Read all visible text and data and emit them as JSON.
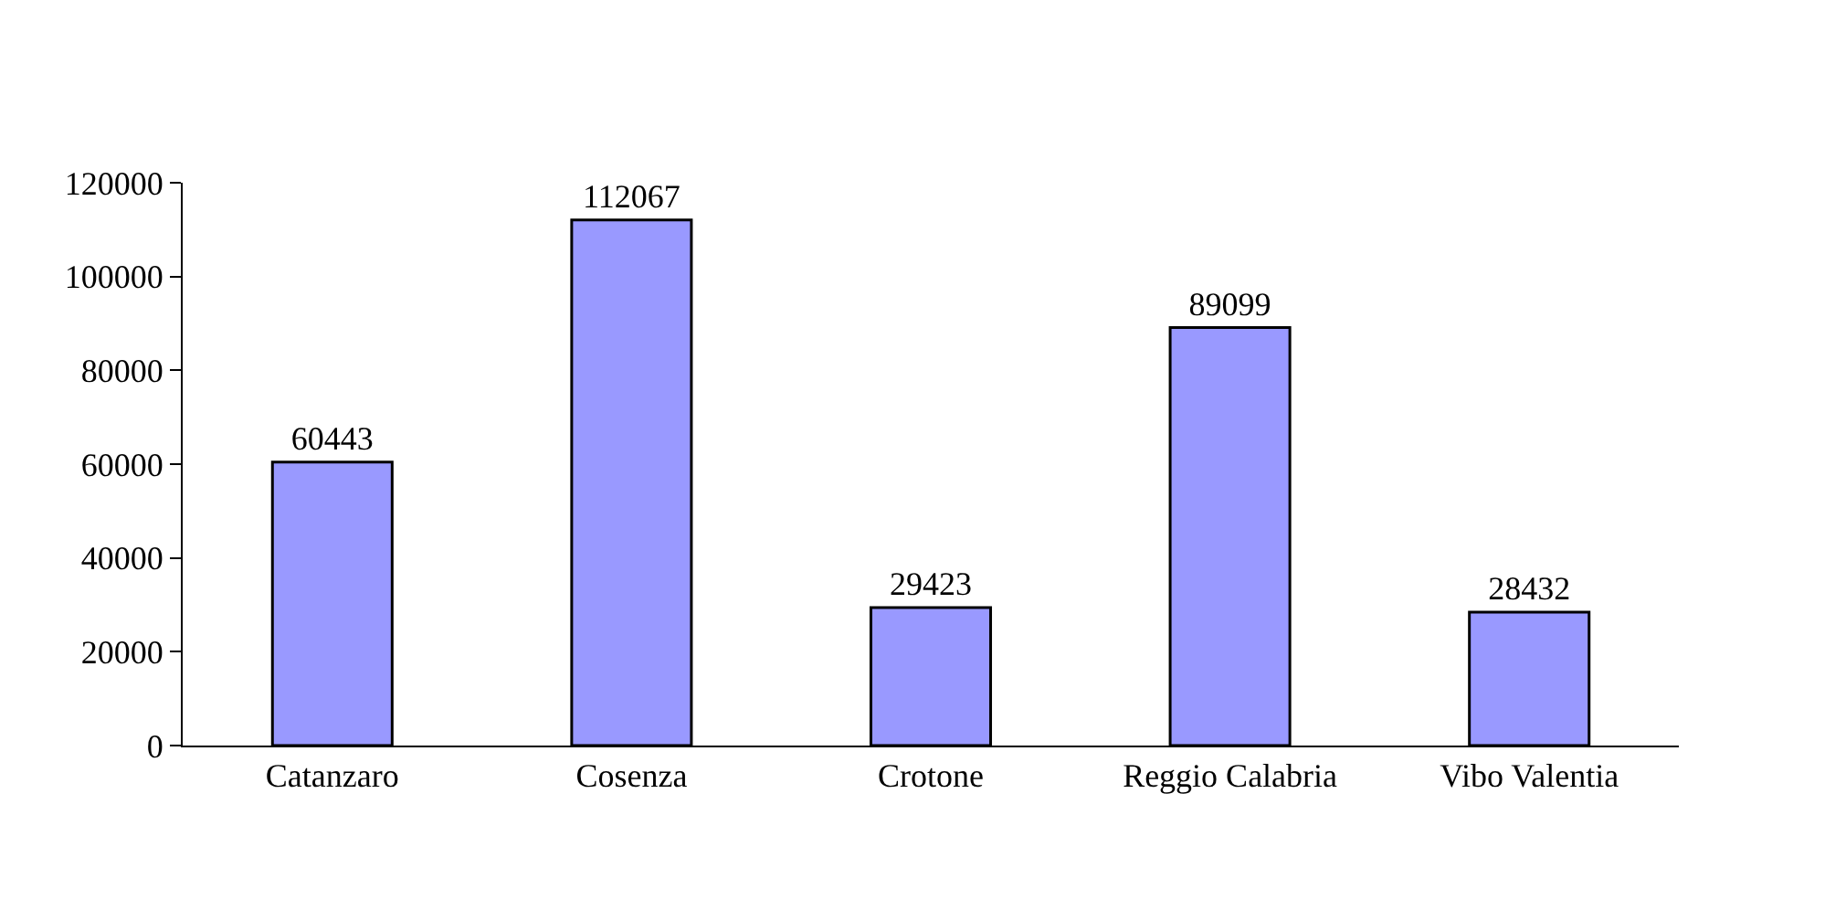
{
  "chart_data": {
    "type": "bar",
    "categories": [
      "Catanzaro",
      "Cosenza",
      "Crotone",
      "Reggio Calabria",
      "Vibo Valentia"
    ],
    "values": [
      60443,
      112067,
      29423,
      89099,
      28432
    ],
    "color": "#9999ff",
    "ylim": [
      0,
      120000
    ],
    "yticks": [
      0,
      20000,
      40000,
      60000,
      80000,
      100000,
      120000
    ],
    "data_labels": true,
    "legend": false
  }
}
